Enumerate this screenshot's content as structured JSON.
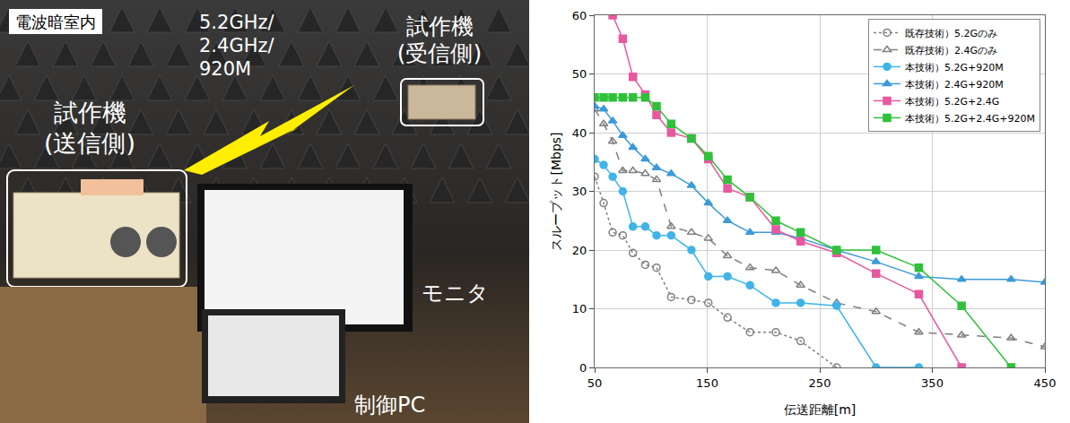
{
  "photo": {
    "room": "電波暗室内",
    "bands": "5.2GHz/2.4GHz/920M",
    "transmitter": "試作機(送信側)",
    "receiver": "試作機(受信側)",
    "monitor": "モニタ",
    "pc": "制御PC"
  },
  "chart_data": {
    "type": "line",
    "x_label": "伝送距離[m]",
    "y_label": "スループット[Mbps]",
    "xlim": [
      50,
      450
    ],
    "xticks": [
      50,
      150,
      250,
      350,
      450
    ],
    "ylim": [
      0,
      60
    ],
    "yticks": [
      0,
      10,
      20,
      30,
      40,
      50,
      60
    ],
    "grid": true,
    "legend": "upper right",
    "series": [
      {
        "name": "既存技術）5.2Gのみ",
        "color": "#7f7f7f",
        "marker": "circle-open",
        "line_style": "dot",
        "x": [
          50,
          58,
          66,
          75,
          84,
          95,
          105,
          118,
          136,
          151,
          168,
          188,
          211,
          233,
          265
        ],
        "values": [
          32.5,
          28,
          23,
          22.5,
          19.5,
          17.5,
          17,
          12,
          11.5,
          11,
          8.5,
          6,
          6,
          4.5,
          0
        ]
      },
      {
        "name": "既存技術）2.4Gのみ",
        "color": "#7f7f7f",
        "marker": "triangle-up-open",
        "line_style": "dash",
        "x": [
          50,
          58,
          66,
          75,
          84,
          95,
          105,
          118,
          136,
          151,
          168,
          188,
          211,
          233,
          265,
          300,
          338,
          376,
          420,
          450
        ],
        "values": [
          44,
          41.5,
          38.5,
          33.5,
          33.5,
          33,
          32,
          24,
          23,
          22,
          19,
          17,
          16.5,
          14,
          11,
          9.5,
          6,
          5.5,
          5,
          3.5
        ]
      },
      {
        "name": "本技術）5.2G+920M",
        "color": "#3fb4e8",
        "marker": "circle",
        "line_style": "solid",
        "x": [
          50,
          58,
          66,
          75,
          84,
          95,
          105,
          118,
          136,
          151,
          168,
          188,
          211,
          233,
          265,
          300,
          338
        ],
        "values": [
          35.5,
          34.5,
          32.5,
          30,
          24,
          24,
          22.5,
          22.5,
          20,
          15.5,
          15.5,
          14,
          11,
          11,
          10.5,
          0,
          0
        ]
      },
      {
        "name": "本技術）2.4G+920M",
        "color": "#3c9ad8",
        "marker": "triangle-up",
        "line_style": "solid",
        "x": [
          50,
          58,
          66,
          75,
          84,
          95,
          105,
          118,
          136,
          151,
          168,
          188,
          211,
          233,
          265,
          300,
          338,
          376,
          420,
          450
        ],
        "values": [
          44.5,
          44,
          42,
          39.5,
          37.5,
          35.5,
          34,
          33,
          31,
          28,
          25,
          23,
          23,
          22,
          20,
          18,
          15.5,
          15,
          15,
          14.5
        ]
      },
      {
        "name": "本技術）5.2G+2.4G",
        "color": "#e8589e",
        "marker": "square",
        "line_style": "solid",
        "x": [
          66,
          75,
          84,
          95,
          105,
          118,
          136,
          151,
          168,
          188,
          211,
          233,
          265,
          300,
          338,
          376
        ],
        "values": [
          60,
          56,
          49.5,
          46.5,
          43,
          40,
          39,
          35.5,
          30.5,
          29,
          23.5,
          21.5,
          19.5,
          16,
          12.5,
          0
        ]
      },
      {
        "name": "本技術）5.2G+2.4G+920M",
        "color": "#2fc13a",
        "marker": "square",
        "line_style": "solid",
        "x": [
          50,
          58,
          66,
          75,
          84,
          95,
          105,
          118,
          136,
          151,
          168,
          188,
          211,
          233,
          265,
          300,
          338,
          376,
          420
        ],
        "values": [
          46,
          46,
          46,
          46,
          46,
          46,
          44.5,
          41.5,
          39,
          36,
          32,
          29,
          25,
          23,
          20,
          20,
          17,
          10.5,
          0
        ]
      }
    ]
  }
}
